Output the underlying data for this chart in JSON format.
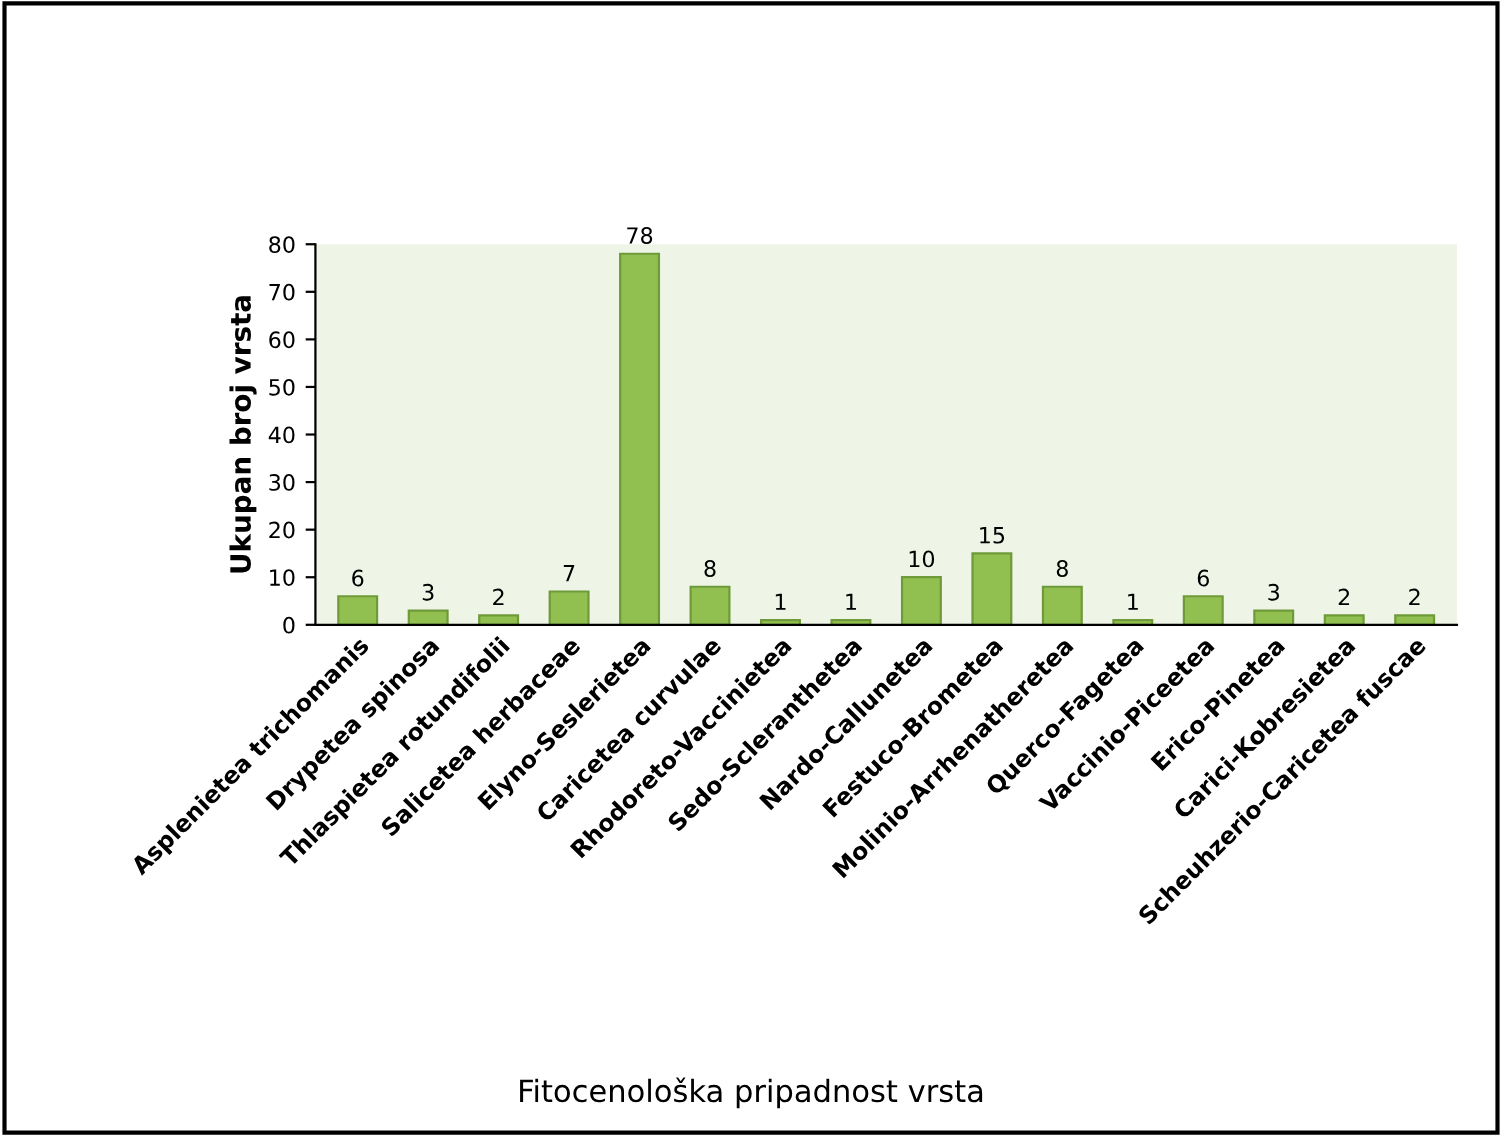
{
  "chart_data": {
    "type": "bar",
    "xlabel": "Fitocenološka pripadnost vrsta",
    "ylabel": "Ukupan broj vrsta",
    "categories": [
      "Asplenietea trichomanis",
      "Drypetea spinosa",
      "Thlaspietea rotundifolii",
      "Salicetea herbaceae",
      "Elyno-Seslerietea",
      "Caricetea curvulae",
      "Rhodoreto-Vaccinietea",
      "Sedo-Scleranthetea",
      "Nardo-Callunetea",
      "Festuco-Brometea",
      "Molinio-Arrhenatheretea",
      "Querco-Fagetea",
      "Vaccinio-Piceetea",
      "Erico-Pinetea",
      "Carici-Kobresietea",
      "Scheuhzerio-Caricetea fuscae"
    ],
    "values": [
      6,
      3,
      2,
      7,
      78,
      8,
      1,
      1,
      10,
      15,
      8,
      1,
      6,
      3,
      2,
      2
    ],
    "color": "#92c050",
    "ylim": [
      0,
      80
    ],
    "yticks": [
      0,
      10,
      20,
      30,
      40,
      50,
      60,
      70,
      80
    ],
    "data_labels": true,
    "grid": false
  }
}
